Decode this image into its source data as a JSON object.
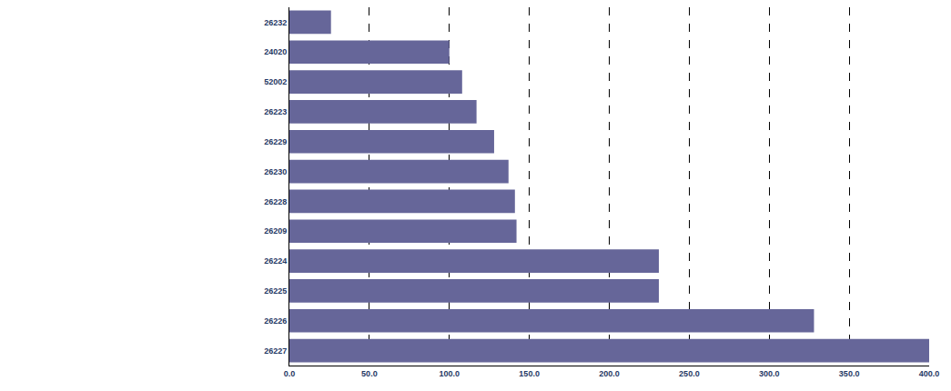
{
  "chart_data": {
    "type": "bar",
    "orientation": "horizontal",
    "categories": [
      "26232",
      "24020",
      "52002",
      "26223",
      "26229",
      "26230",
      "26228",
      "26209",
      "26224",
      "26225",
      "26226",
      "26227"
    ],
    "values": [
      26,
      100,
      108,
      117,
      128,
      137,
      141,
      142,
      231,
      231,
      328,
      400
    ],
    "color": "#666699",
    "xlim": [
      0,
      400
    ],
    "xticks": [
      {
        "value": 0,
        "label": "0.0"
      },
      {
        "value": 50,
        "label": "50.0"
      },
      {
        "value": 100,
        "label": "100.0"
      },
      {
        "value": 150,
        "label": "150.0"
      },
      {
        "value": 200,
        "label": "200.0"
      },
      {
        "value": 250,
        "label": "250.0"
      },
      {
        "value": 300,
        "label": "300.0"
      },
      {
        "value": 350,
        "label": "350.0"
      },
      {
        "value": 400,
        "label": "400.0"
      }
    ],
    "grid": true
  }
}
